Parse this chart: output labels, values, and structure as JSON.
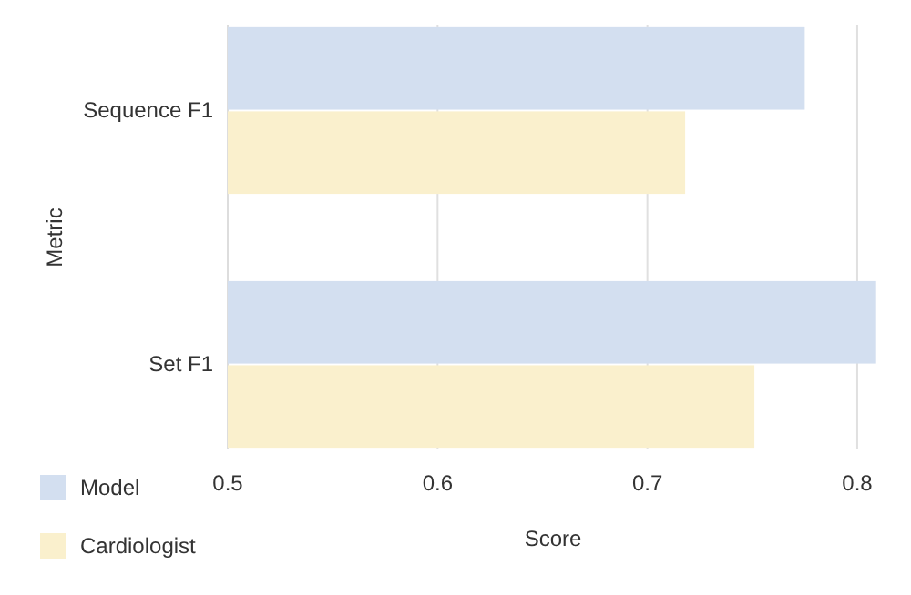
{
  "chart_data": {
    "type": "bar",
    "orientation": "horizontal",
    "xlabel": "Score",
    "ylabel": "Metric",
    "categories": [
      "Sequence F1",
      "Set F1"
    ],
    "series": [
      {
        "name": "Model",
        "color": "#d3dff0",
        "values": [
          0.775,
          0.809
        ]
      },
      {
        "name": "Cardiologist",
        "color": "#faf0cd",
        "values": [
          0.718,
          0.751
        ]
      }
    ],
    "xlim": [
      0.5,
      0.81
    ],
    "xticks": [
      0.5,
      0.6,
      0.7,
      0.8
    ],
    "grid": "x",
    "legend": "bottom left"
  }
}
